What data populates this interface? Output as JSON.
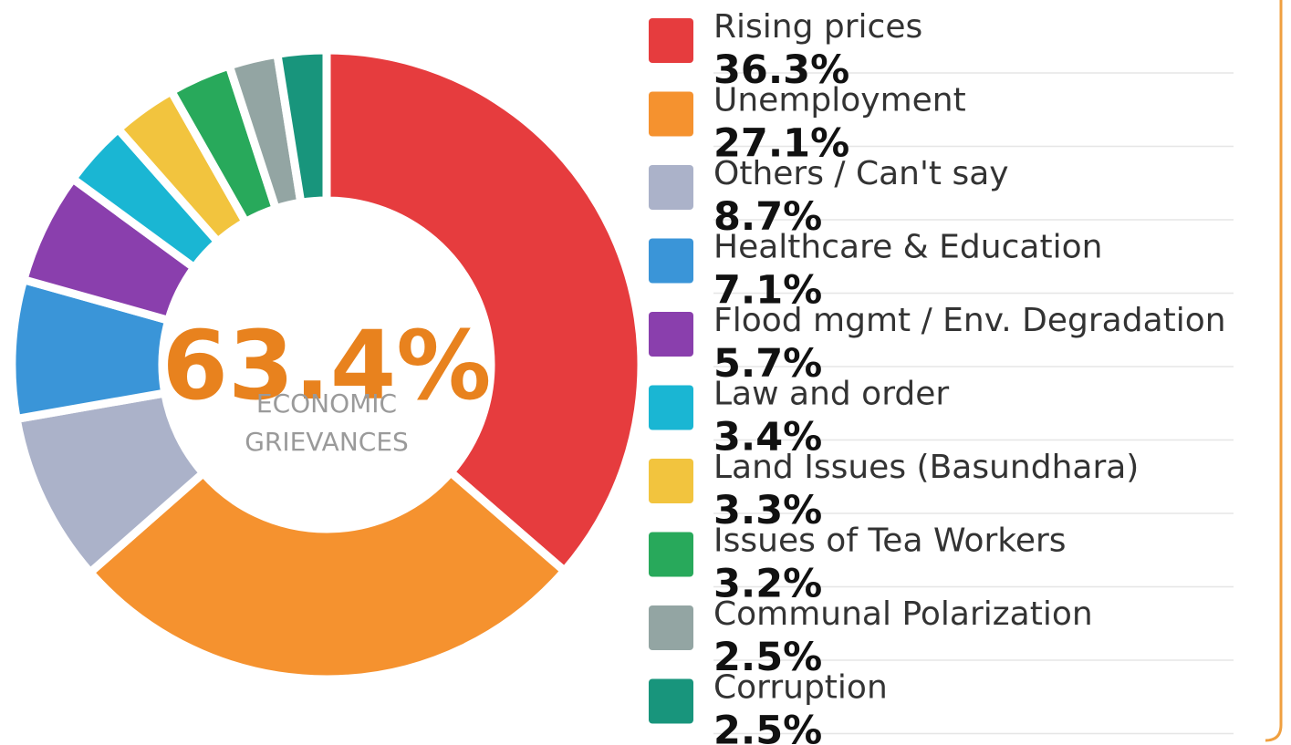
{
  "chart_data": {
    "type": "donut",
    "categories": [
      "Rising prices",
      "Unemployment",
      "Others / Can't say",
      "Healthcare & Education",
      "Flood mgmt / Env. Degradation",
      "Law and order",
      "Land Issues (Basundhara)",
      "Issues of Tea Workers",
      "Communal Polarization",
      "Corruption"
    ],
    "values": [
      36.3,
      27.1,
      8.7,
      7.1,
      5.7,
      3.4,
      3.3,
      3.2,
      2.5,
      2.5
    ],
    "value_labels": [
      "36.3%",
      "27.1%",
      "8.7%",
      "7.1%",
      "5.7%",
      "3.4%",
      "3.3%",
      "3.2%",
      "2.5%",
      "2.5%"
    ],
    "colors": [
      "#e63c3e",
      "#f5922f",
      "#abb2c9",
      "#3a95d8",
      "#8a3fad",
      "#1ab6d3",
      "#f2c43e",
      "#28a95b",
      "#93a5a3",
      "#18957c"
    ],
    "center_label": "63.4%",
    "center_caption": [
      "ECONOMIC",
      "GRIEVANCES"
    ],
    "legend": "right"
  }
}
